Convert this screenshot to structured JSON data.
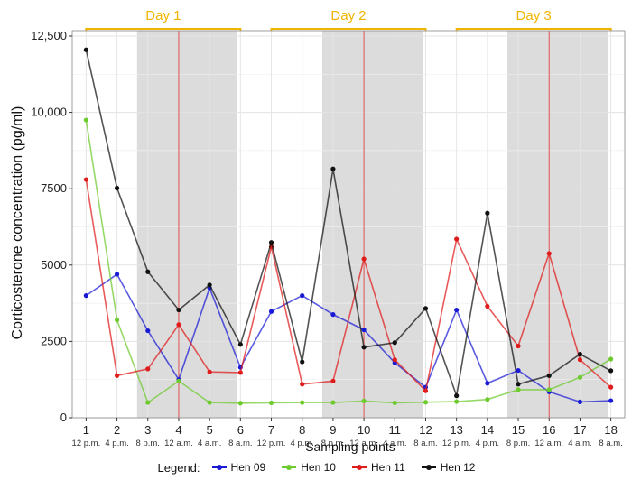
{
  "chart_data": {
    "type": "line",
    "title": "",
    "xlabel": "Sampling points",
    "ylabel": "Corticosterone concentration (pg/ml)",
    "ylim": [
      0,
      12500
    ],
    "yticks": [
      0,
      2500,
      5000,
      7500,
      10000,
      12500
    ],
    "ytick_labels": [
      "0",
      "2500",
      "5000",
      "7500",
      "10,000",
      "12,500"
    ],
    "x": [
      1,
      2,
      3,
      4,
      5,
      6,
      7,
      8,
      9,
      10,
      11,
      12,
      13,
      14,
      15,
      16,
      17,
      18
    ],
    "x_tick_labels": [
      "1",
      "2",
      "3",
      "4",
      "5",
      "6",
      "7",
      "8",
      "9",
      "10",
      "11",
      "12",
      "13",
      "14",
      "15",
      "16",
      "17",
      "18"
    ],
    "x_time_labels": [
      "12 p.m.",
      "4 p.m.",
      "8 p.m.",
      "12 a.m.",
      "4 a.m.",
      "8 a.m.",
      "12 p.m.",
      "4 p.m.",
      "8 p.m.",
      "12 a.m.",
      "4 a.m.",
      "8 a.m.",
      "12 p.m.",
      "4 p.m.",
      "8 p.m.",
      "12 a.m.",
      "4 a.m.",
      "8 a.m."
    ],
    "days": [
      {
        "label": "Day 1",
        "start": 1,
        "end": 6
      },
      {
        "label": "Day 2",
        "start": 7,
        "end": 12
      },
      {
        "label": "Day 3",
        "start": 13,
        "end": 18
      }
    ],
    "night_shading": [
      [
        2.65,
        5.9
      ],
      [
        8.65,
        11.9
      ],
      [
        14.65,
        17.9
      ]
    ],
    "midnight_lines": [
      4,
      10,
      16
    ],
    "grid": true,
    "legend_title": "Legend:",
    "legend_position": "bottom",
    "series": [
      {
        "name": "Hen 09",
        "color": "#1a1ad6",
        "values": [
          4000,
          4700,
          2850,
          1250,
          4250,
          1650,
          3480,
          4000,
          3380,
          2880,
          1800,
          1000,
          3530,
          1130,
          1550,
          850,
          520,
          560
        ]
      },
      {
        "name": "Hen 10",
        "color": "#6ecb2e",
        "values": [
          9750,
          3200,
          500,
          1200,
          500,
          480,
          490,
          500,
          500,
          550,
          490,
          510,
          530,
          600,
          920,
          920,
          1320,
          1920
        ]
      },
      {
        "name": "Hen 11",
        "color": "#e01b1b",
        "values": [
          7800,
          1380,
          1600,
          3050,
          1500,
          1480,
          5600,
          1100,
          1200,
          5200,
          1900,
          880,
          5850,
          3650,
          2350,
          5380,
          1900,
          1000
        ]
      },
      {
        "name": "Hen 12",
        "color": "#111111",
        "values": [
          12050,
          7520,
          4780,
          3530,
          4350,
          2400,
          5740,
          1830,
          8150,
          2310,
          2460,
          3580,
          720,
          6700,
          1100,
          1380,
          2080,
          1540
        ]
      }
    ]
  }
}
